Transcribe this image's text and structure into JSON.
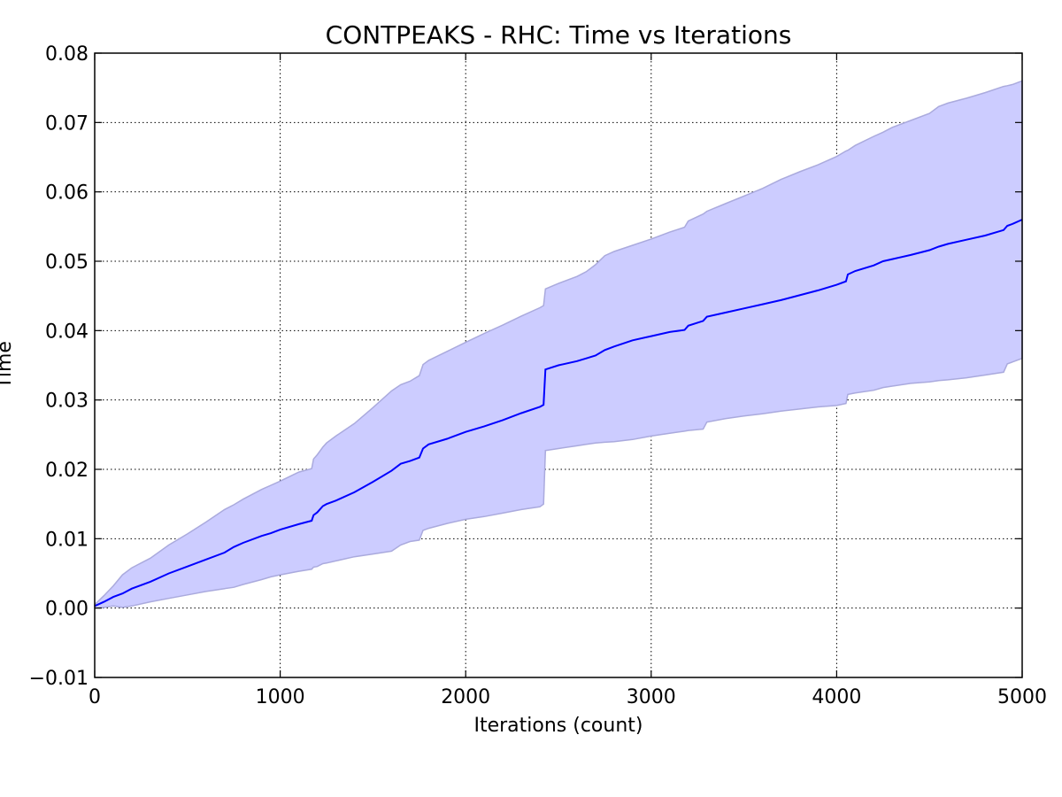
{
  "chart_data": {
    "type": "line",
    "title": "CONTPEAKS - RHC: Time vs Iterations",
    "xlabel": "Iterations (count)",
    "ylabel": "Time",
    "xlim": [
      0,
      5000
    ],
    "ylim": [
      -0.01,
      0.08
    ],
    "x_ticks": [
      0,
      1000,
      2000,
      3000,
      4000,
      5000
    ],
    "x_tick_labels": [
      "0",
      "1000",
      "2000",
      "3000",
      "4000",
      "5000"
    ],
    "y_ticks": [
      -0.01,
      0.0,
      0.01,
      0.02,
      0.03,
      0.04,
      0.05,
      0.06,
      0.07,
      0.08
    ],
    "y_tick_labels": [
      "−0.01",
      "0.00",
      "0.01",
      "0.02",
      "0.03",
      "0.04",
      "0.05",
      "0.06",
      "0.07",
      "0.08"
    ],
    "grid": true,
    "colors": {
      "line": "#0000ff",
      "band": "#ccccff",
      "band_edge": "#aaaadd"
    },
    "series": [
      {
        "x": [
          0,
          50,
          100,
          150,
          200,
          300,
          400,
          500,
          600,
          700,
          750,
          800,
          900,
          950,
          1000,
          1100,
          1170,
          1180,
          1200,
          1230,
          1250,
          1300,
          1400,
          1500,
          1600,
          1650,
          1700,
          1750,
          1770,
          1800,
          1900,
          2000,
          2100,
          2200,
          2300,
          2400,
          2420,
          2430,
          2500,
          2600,
          2650,
          2700,
          2750,
          2800,
          2900,
          3000,
          3100,
          3180,
          3200,
          3280,
          3300,
          3400,
          3500,
          3600,
          3700,
          3800,
          3900,
          4000,
          4050,
          4060,
          4100,
          4200,
          4250,
          4300,
          4400,
          4500,
          4550,
          4600,
          4700,
          4800,
          4900,
          4920,
          4950,
          5000
        ],
        "mean": [
          0.0003,
          0.0009,
          0.0016,
          0.0021,
          0.0028,
          0.0038,
          0.005,
          0.006,
          0.007,
          0.008,
          0.0088,
          0.0094,
          0.0104,
          0.0108,
          0.0113,
          0.0121,
          0.0126,
          0.0134,
          0.0138,
          0.0147,
          0.015,
          0.0155,
          0.0167,
          0.0182,
          0.0198,
          0.0208,
          0.0212,
          0.0217,
          0.023,
          0.0236,
          0.0244,
          0.0254,
          0.0262,
          0.0271,
          0.0281,
          0.029,
          0.0293,
          0.0344,
          0.035,
          0.0356,
          0.036,
          0.0364,
          0.0372,
          0.0377,
          0.0386,
          0.0392,
          0.0398,
          0.0401,
          0.0407,
          0.0414,
          0.042,
          0.0426,
          0.0432,
          0.0438,
          0.0444,
          0.0451,
          0.0458,
          0.0466,
          0.0471,
          0.0481,
          0.0486,
          0.0494,
          0.05,
          0.0503,
          0.0509,
          0.0516,
          0.0521,
          0.0525,
          0.0531,
          0.0537,
          0.0545,
          0.0551,
          0.0554,
          0.056
        ],
        "upper": [
          0.0005,
          0.0018,
          0.0032,
          0.0048,
          0.0058,
          0.0072,
          0.0091,
          0.0107,
          0.0124,
          0.0142,
          0.0149,
          0.0157,
          0.0171,
          0.0177,
          0.0183,
          0.0196,
          0.0201,
          0.0215,
          0.0221,
          0.0232,
          0.0238,
          0.0248,
          0.0266,
          0.0289,
          0.0313,
          0.0322,
          0.0327,
          0.0335,
          0.0351,
          0.0357,
          0.037,
          0.0383,
          0.0396,
          0.0408,
          0.0421,
          0.0433,
          0.0436,
          0.046,
          0.0468,
          0.0478,
          0.0485,
          0.0495,
          0.0508,
          0.0514,
          0.0523,
          0.0532,
          0.0542,
          0.0549,
          0.0558,
          0.0568,
          0.0572,
          0.0583,
          0.0594,
          0.0605,
          0.0618,
          0.0629,
          0.0639,
          0.0651,
          0.0659,
          0.066,
          0.0667,
          0.068,
          0.0686,
          0.0693,
          0.0703,
          0.0713,
          0.0723,
          0.0728,
          0.0735,
          0.0743,
          0.0752,
          0.0753,
          0.0755,
          0.076
        ],
        "lower": [
          0.0,
          0.0001,
          0.0003,
          0.0001,
          0.0003,
          0.0009,
          0.0014,
          0.0019,
          0.0024,
          0.0028,
          0.003,
          0.0034,
          0.0041,
          0.0045,
          0.0048,
          0.0053,
          0.0056,
          0.0059,
          0.006,
          0.0064,
          0.0065,
          0.0068,
          0.0074,
          0.0078,
          0.0082,
          0.0091,
          0.0096,
          0.0098,
          0.0112,
          0.0115,
          0.0122,
          0.0128,
          0.0132,
          0.0137,
          0.0142,
          0.0146,
          0.015,
          0.0227,
          0.023,
          0.0234,
          0.0236,
          0.0238,
          0.0239,
          0.024,
          0.0243,
          0.0248,
          0.0252,
          0.0255,
          0.0256,
          0.0258,
          0.0268,
          0.0273,
          0.0277,
          0.028,
          0.0284,
          0.0287,
          0.029,
          0.0292,
          0.0295,
          0.0308,
          0.031,
          0.0314,
          0.0318,
          0.032,
          0.0324,
          0.0326,
          0.0328,
          0.0329,
          0.0332,
          0.0336,
          0.034,
          0.0352,
          0.0355,
          0.036
        ]
      }
    ]
  }
}
